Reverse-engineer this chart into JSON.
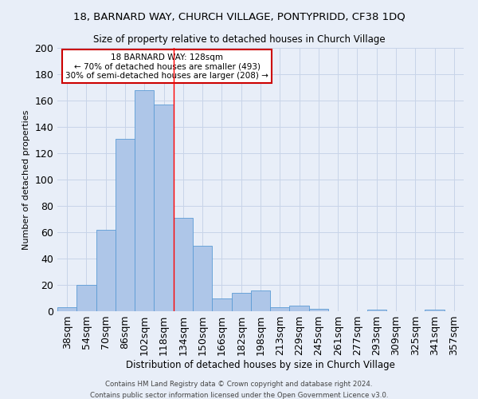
{
  "title1": "18, BARNARD WAY, CHURCH VILLAGE, PONTYPRIDD, CF38 1DQ",
  "title2": "Size of property relative to detached houses in Church Village",
  "xlabel": "Distribution of detached houses by size in Church Village",
  "ylabel": "Number of detached properties",
  "bin_labels": [
    "38sqm",
    "54sqm",
    "70sqm",
    "86sqm",
    "102sqm",
    "118sqm",
    "134sqm",
    "150sqm",
    "166sqm",
    "182sqm",
    "198sqm",
    "213sqm",
    "229sqm",
    "245sqm",
    "261sqm",
    "277sqm",
    "293sqm",
    "309sqm",
    "325sqm",
    "341sqm",
    "357sqm"
  ],
  "bar_values": [
    3,
    20,
    62,
    131,
    168,
    157,
    71,
    50,
    10,
    14,
    16,
    3,
    4,
    2,
    0,
    0,
    1,
    0,
    0,
    1,
    0
  ],
  "bar_color": "#aec6e8",
  "bar_edge_color": "#5b9bd5",
  "vline_bin_index": 5,
  "annotation_text": "18 BARNARD WAY: 128sqm\n← 70% of detached houses are smaller (493)\n30% of semi-detached houses are larger (208) →",
  "annotation_box_color": "#ffffff",
  "annotation_box_edge_color": "#cc0000",
  "ylim": [
    0,
    200
  ],
  "yticks": [
    0,
    20,
    40,
    60,
    80,
    100,
    120,
    140,
    160,
    180,
    200
  ],
  "grid_color": "#c8d4e8",
  "background_color": "#e8eef8",
  "footer1": "Contains HM Land Registry data © Crown copyright and database right 2024.",
  "footer2": "Contains public sector information licensed under the Open Government Licence v3.0."
}
